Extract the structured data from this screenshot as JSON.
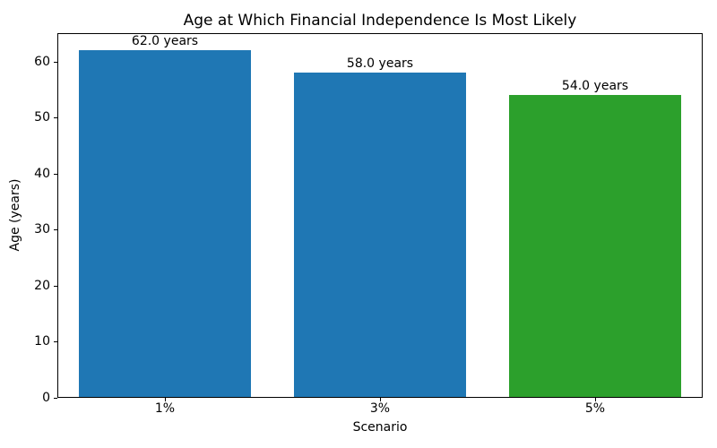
{
  "chart_data": {
    "type": "bar",
    "title": "Age at Which Financial Independence Is Most Likely",
    "xlabel": "Scenario",
    "ylabel": "Age (years)",
    "categories": [
      "1%",
      "3%",
      "5%"
    ],
    "values": [
      62.0,
      58.0,
      54.0
    ],
    "bar_labels": [
      "62.0 years",
      "58.0 years",
      "54.0 years"
    ],
    "bar_colors": [
      "#1f77b4",
      "#1f77b4",
      "#2ca02c"
    ],
    "ylim": [
      0,
      65.1
    ],
    "yticks": [
      0,
      10,
      20,
      30,
      40,
      50,
      60
    ],
    "bar_width_fraction": 0.8,
    "grid": false,
    "background_color": "#ffffff",
    "axis_color": "#000000"
  }
}
